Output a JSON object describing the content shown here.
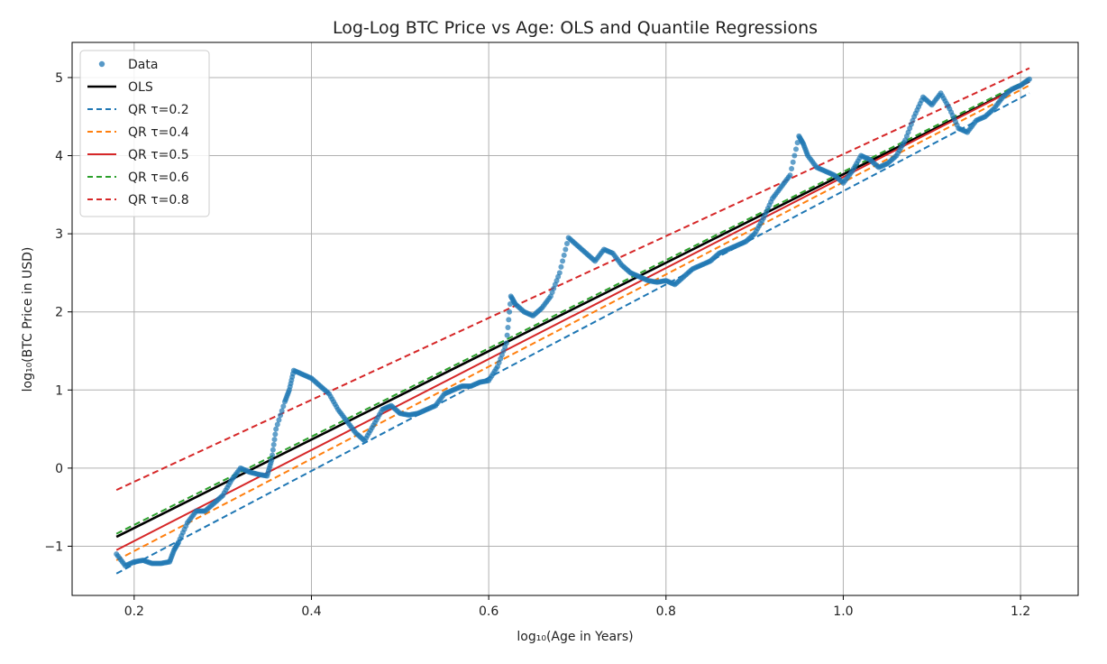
{
  "chart_data": {
    "type": "scatter",
    "title": "Log-Log BTC Price vs Age: OLS and Quantile Regressions",
    "xlabel": "log₁₀(Age in Years)",
    "ylabel": "log₁₀(BTC Price in USD)",
    "xlim": [
      0.13,
      1.265
    ],
    "ylim": [
      -1.63,
      5.45
    ],
    "xticks": [
      0.2,
      0.4,
      0.6,
      0.8,
      1.0,
      1.2
    ],
    "xtick_labels": [
      "0.2",
      "0.4",
      "0.6",
      "0.8",
      "1.0",
      "1.2"
    ],
    "yticks": [
      -1,
      0,
      1,
      2,
      3,
      4,
      5
    ],
    "ytick_labels": [
      "−1",
      "0",
      "1",
      "2",
      "3",
      "4",
      "5"
    ],
    "grid": true,
    "legend_position": "top-left",
    "scatter": {
      "name": "Data",
      "color": "#1f77b4",
      "x": [
        0.18,
        0.19,
        0.2,
        0.21,
        0.22,
        0.23,
        0.24,
        0.245,
        0.25,
        0.26,
        0.27,
        0.28,
        0.29,
        0.3,
        0.31,
        0.32,
        0.33,
        0.34,
        0.35,
        0.355,
        0.36,
        0.37,
        0.375,
        0.38,
        0.39,
        0.4,
        0.41,
        0.42,
        0.43,
        0.44,
        0.45,
        0.46,
        0.47,
        0.48,
        0.49,
        0.5,
        0.51,
        0.52,
        0.53,
        0.54,
        0.55,
        0.56,
        0.57,
        0.58,
        0.59,
        0.6,
        0.61,
        0.62,
        0.625,
        0.63,
        0.64,
        0.65,
        0.66,
        0.67,
        0.68,
        0.69,
        0.7,
        0.71,
        0.72,
        0.73,
        0.74,
        0.75,
        0.76,
        0.77,
        0.78,
        0.79,
        0.8,
        0.81,
        0.82,
        0.83,
        0.84,
        0.85,
        0.86,
        0.87,
        0.88,
        0.89,
        0.9,
        0.91,
        0.92,
        0.93,
        0.94,
        0.95,
        0.955,
        0.96,
        0.97,
        0.98,
        0.99,
        1.0,
        1.01,
        1.02,
        1.03,
        1.04,
        1.05,
        1.06,
        1.07,
        1.08,
        1.09,
        1.1,
        1.11,
        1.12,
        1.13,
        1.14,
        1.15,
        1.16,
        1.17,
        1.18,
        1.19,
        1.2,
        1.21
      ],
      "y": [
        -1.1,
        -1.25,
        -1.2,
        -1.18,
        -1.22,
        -1.22,
        -1.2,
        -1.05,
        -0.95,
        -0.7,
        -0.55,
        -0.55,
        -0.45,
        -0.35,
        -0.15,
        0.0,
        -0.05,
        -0.08,
        -0.1,
        0.1,
        0.5,
        0.85,
        1.0,
        1.25,
        1.2,
        1.15,
        1.05,
        0.95,
        0.75,
        0.6,
        0.45,
        0.35,
        0.55,
        0.75,
        0.8,
        0.7,
        0.68,
        0.7,
        0.75,
        0.8,
        0.95,
        1.0,
        1.05,
        1.05,
        1.1,
        1.12,
        1.3,
        1.6,
        2.2,
        2.1,
        2.0,
        1.95,
        2.05,
        2.2,
        2.5,
        2.95,
        2.85,
        2.75,
        2.65,
        2.8,
        2.75,
        2.6,
        2.5,
        2.45,
        2.4,
        2.38,
        2.4,
        2.35,
        2.45,
        2.55,
        2.6,
        2.65,
        2.75,
        2.8,
        2.85,
        2.9,
        3.0,
        3.2,
        3.45,
        3.6,
        3.75,
        4.25,
        4.15,
        4.0,
        3.85,
        3.8,
        3.75,
        3.65,
        3.8,
        4.0,
        3.95,
        3.85,
        3.9,
        4.0,
        4.2,
        4.5,
        4.75,
        4.65,
        4.8,
        4.6,
        4.35,
        4.3,
        4.45,
        4.5,
        4.6,
        4.75,
        4.85,
        4.9,
        4.98
      ]
    },
    "series": [
      {
        "name": "OLS",
        "color": "#000000",
        "style": "solid",
        "x": [
          0.18,
          1.21
        ],
        "y": [
          -0.88,
          4.95
        ]
      },
      {
        "name": "QR τ=0.2",
        "color": "#1f77b4",
        "style": "dashed",
        "x": [
          0.18,
          1.21
        ],
        "y": [
          -1.35,
          4.8
        ]
      },
      {
        "name": "QR τ=0.4",
        "color": "#ff7f0e",
        "style": "dashed",
        "x": [
          0.18,
          1.21
        ],
        "y": [
          -1.18,
          4.9
        ]
      },
      {
        "name": "QR τ=0.5",
        "color": "#d62728",
        "style": "solid",
        "x": [
          0.18,
          1.21
        ],
        "y": [
          -1.05,
          4.95
        ]
      },
      {
        "name": "QR τ=0.6",
        "color": "#2ca02c",
        "style": "dashed",
        "x": [
          0.18,
          1.21
        ],
        "y": [
          -0.84,
          4.98
        ]
      },
      {
        "name": "QR τ=0.8",
        "color": "#d62728",
        "style": "dashed",
        "x": [
          0.18,
          1.21
        ],
        "y": [
          -0.28,
          5.12
        ]
      }
    ],
    "legend": [
      {
        "label": "Data",
        "kind": "marker",
        "color": "#1f77b4"
      },
      {
        "label": "OLS",
        "kind": "solid",
        "color": "#000000"
      },
      {
        "label": "QR τ=0.2",
        "kind": "dashed",
        "color": "#1f77b4"
      },
      {
        "label": "QR τ=0.4",
        "kind": "dashed",
        "color": "#ff7f0e"
      },
      {
        "label": "QR τ=0.5",
        "kind": "solid",
        "color": "#d62728"
      },
      {
        "label": "QR τ=0.6",
        "kind": "dashed",
        "color": "#2ca02c"
      },
      {
        "label": "QR τ=0.8",
        "kind": "dashed",
        "color": "#d62728"
      }
    ]
  }
}
